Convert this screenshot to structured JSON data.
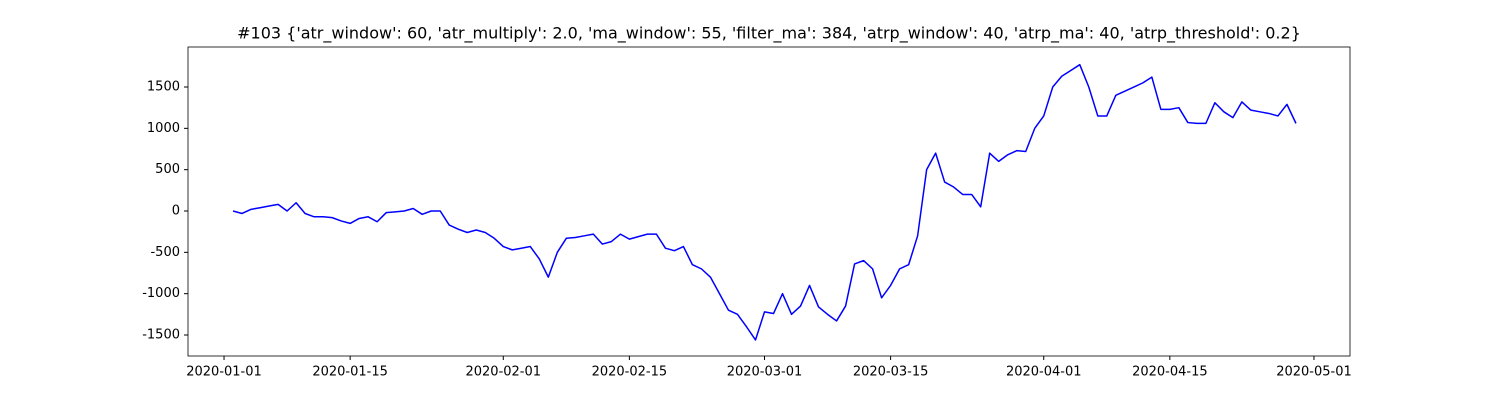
{
  "chart_data": {
    "type": "line",
    "title": "#103 {'atr_window': 60, 'atr_multiply': 2.0, 'ma_window': 55, 'filter_ma': 384, 'atrp_window': 40, 'atrp_ma': 40, 'atrp_threshold': 0.2}",
    "x": [
      "2020-01-02",
      "2020-01-03",
      "2020-01-04",
      "2020-01-05",
      "2020-01-06",
      "2020-01-07",
      "2020-01-08",
      "2020-01-09",
      "2020-01-10",
      "2020-01-11",
      "2020-01-12",
      "2020-01-13",
      "2020-01-14",
      "2020-01-15",
      "2020-01-16",
      "2020-01-17",
      "2020-01-18",
      "2020-01-19",
      "2020-01-20",
      "2020-01-21",
      "2020-01-22",
      "2020-01-23",
      "2020-01-24",
      "2020-01-25",
      "2020-01-26",
      "2020-01-27",
      "2020-01-28",
      "2020-01-29",
      "2020-01-30",
      "2020-01-31",
      "2020-02-01",
      "2020-02-02",
      "2020-02-03",
      "2020-02-04",
      "2020-02-05",
      "2020-02-06",
      "2020-02-07",
      "2020-02-08",
      "2020-02-09",
      "2020-02-10",
      "2020-02-11",
      "2020-02-12",
      "2020-02-13",
      "2020-02-14",
      "2020-02-15",
      "2020-02-16",
      "2020-02-17",
      "2020-02-18",
      "2020-02-19",
      "2020-02-20",
      "2020-02-21",
      "2020-02-22",
      "2020-02-23",
      "2020-02-24",
      "2020-02-25",
      "2020-02-26",
      "2020-02-27",
      "2020-02-28",
      "2020-02-29",
      "2020-03-01",
      "2020-03-02",
      "2020-03-03",
      "2020-03-04",
      "2020-03-05",
      "2020-03-06",
      "2020-03-07",
      "2020-03-08",
      "2020-03-09",
      "2020-03-10",
      "2020-03-11",
      "2020-03-12",
      "2020-03-13",
      "2020-03-14",
      "2020-03-15",
      "2020-03-16",
      "2020-03-17",
      "2020-03-18",
      "2020-03-19",
      "2020-03-20",
      "2020-03-21",
      "2020-03-22",
      "2020-03-23",
      "2020-03-24",
      "2020-03-25",
      "2020-03-26",
      "2020-03-27",
      "2020-03-28",
      "2020-03-29",
      "2020-03-30",
      "2020-03-31",
      "2020-04-01",
      "2020-04-02",
      "2020-04-03",
      "2020-04-04",
      "2020-04-05",
      "2020-04-06",
      "2020-04-07",
      "2020-04-08",
      "2020-04-09",
      "2020-04-10",
      "2020-04-11",
      "2020-04-12",
      "2020-04-13",
      "2020-04-14",
      "2020-04-15",
      "2020-04-16",
      "2020-04-17",
      "2020-04-18",
      "2020-04-19",
      "2020-04-20",
      "2020-04-21",
      "2020-04-22",
      "2020-04-23",
      "2020-04-24",
      "2020-04-25",
      "2020-04-26",
      "2020-04-27",
      "2020-04-28",
      "2020-04-29"
    ],
    "series": [
      {
        "color": "#0000ff",
        "values": [
          0,
          -30,
          20,
          40,
          60,
          80,
          0,
          100,
          -30,
          -70,
          -70,
          -80,
          -120,
          -150,
          -90,
          -70,
          -130,
          -20,
          -10,
          0,
          30,
          -40,
          0,
          0,
          -170,
          -220,
          -260,
          -230,
          -260,
          -330,
          -430,
          -470,
          -450,
          -430,
          -580,
          -800,
          -500,
          -330,
          -320,
          -300,
          -280,
          -400,
          -370,
          -280,
          -340,
          -310,
          -280,
          -280,
          -450,
          -480,
          -430,
          -650,
          -700,
          -800,
          -1000,
          -1200,
          -1250,
          -1400,
          -1560,
          -1220,
          -1240,
          -1000,
          -1250,
          -1150,
          -900,
          -1160,
          -1250,
          -1330,
          -1150,
          -640,
          -600,
          -700,
          -1050,
          -900,
          -700,
          -650,
          -300,
          500,
          700,
          350,
          290,
          200,
          200,
          50,
          700,
          600,
          680,
          730,
          720,
          1000,
          1150,
          1500,
          1630,
          1700,
          1770,
          1500,
          1150,
          1150,
          1400,
          1450,
          1500,
          1550,
          1620,
          1230,
          1230,
          1250,
          1070,
          1060,
          1060,
          1310,
          1200,
          1130,
          1320,
          1220,
          1200,
          1180,
          1150,
          1290,
          1060
        ]
      }
    ],
    "xlim": [
      "2019-12-28",
      "2020-05-05"
    ],
    "xticks": [
      "2020-01-01",
      "2020-01-15",
      "2020-02-01",
      "2020-02-15",
      "2020-03-01",
      "2020-03-15",
      "2020-04-01",
      "2020-04-15",
      "2020-05-01"
    ],
    "ylim": [
      -1754,
      1984
    ],
    "yticks": [
      -1500,
      -1000,
      -500,
      0,
      500,
      1000,
      1500
    ]
  }
}
